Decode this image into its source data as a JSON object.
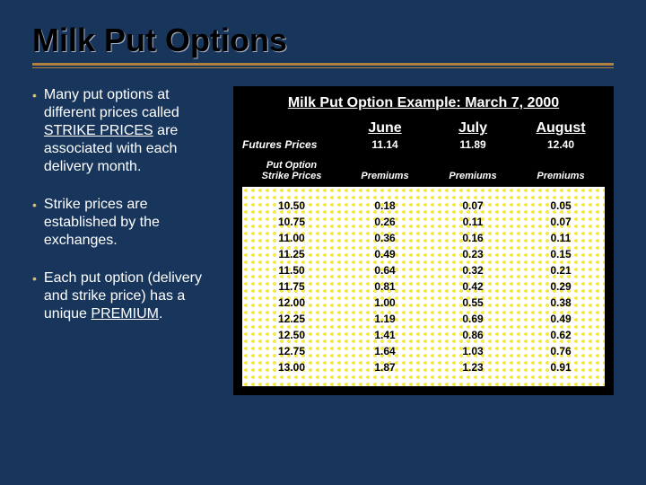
{
  "title": "Milk Put Options",
  "bullets": {
    "b1_pre": "Many put options at different prices called ",
    "b1_u": "STRIKE PRICES",
    "b1_post": " are associated with each delivery month.",
    "b2": "Strike prices are established by the exchanges.",
    "b3_pre": "Each put option (delivery and strike price) has a unique ",
    "b3_u": "PREMIUM",
    "b3_post": "."
  },
  "panel": {
    "title": "Milk Put Option Example:  March 7, 2000",
    "months": [
      "June",
      "July",
      "August"
    ],
    "futures_label": "Futures Prices",
    "futures": [
      "11.14",
      "11.89",
      "12.40"
    ],
    "po_label1": "Put Option",
    "po_label2": "Strike Prices",
    "prem_label": "Premiums",
    "rows": [
      {
        "strike": "10.50",
        "p": [
          "0.18",
          "0.07",
          "0.05"
        ]
      },
      {
        "strike": "10.75",
        "p": [
          "0.26",
          "0.11",
          "0.07"
        ]
      },
      {
        "strike": "11.00",
        "p": [
          "0.36",
          "0.16",
          "0.11"
        ]
      },
      {
        "strike": "11.25",
        "p": [
          "0.49",
          "0.23",
          "0.15"
        ]
      },
      {
        "strike": "11.50",
        "p": [
          "0.64",
          "0.32",
          "0.21"
        ]
      },
      {
        "strike": "11.75",
        "p": [
          "0.81",
          "0.42",
          "0.29"
        ]
      },
      {
        "strike": "12.00",
        "p": [
          "1.00",
          "0.55",
          "0.38"
        ]
      },
      {
        "strike": "12.25",
        "p": [
          "1.19",
          "0.69",
          "0.49"
        ]
      },
      {
        "strike": "12.50",
        "p": [
          "1.41",
          "0.86",
          "0.62"
        ]
      },
      {
        "strike": "12.75",
        "p": [
          "1.64",
          "1.03",
          "0.76"
        ]
      },
      {
        "strike": "13.00",
        "p": [
          "1.87",
          "1.23",
          "0.91"
        ]
      }
    ]
  },
  "colors": {
    "background": "#18365c",
    "accent": "#b1813f",
    "bullet_dot": "#d6c26c",
    "dot_pattern": "#f5e94a"
  }
}
